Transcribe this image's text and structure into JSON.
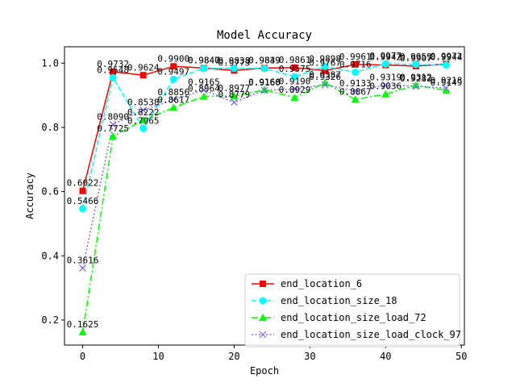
{
  "chart_data": {
    "type": "line",
    "title": "Model Accuracy",
    "xlabel": "Epoch",
    "ylabel": "Accuracy",
    "xlim": [
      -2.4,
      50.4
    ],
    "ylim": [
      0.122,
      1.051
    ],
    "xticks": [
      0,
      10,
      20,
      30,
      40,
      50
    ],
    "yticks": [
      0.2,
      0.4,
      0.6,
      0.8,
      1.0
    ],
    "x": [
      0,
      4,
      8,
      12,
      16,
      20,
      24,
      28,
      32,
      36,
      40,
      44,
      48
    ],
    "legend_position": "lower-right",
    "grid": false,
    "series": [
      {
        "name": "end_location_6",
        "color": "#ff0000",
        "dash": "solid",
        "marker": "square",
        "values": [
          0.6022,
          0.9732,
          0.9624,
          0.99,
          0.9847,
          0.9773,
          0.9849,
          0.9861,
          0.9767,
          0.9961,
          0.9942,
          0.9907,
          0.9972
        ],
        "labels": [
          "0.6022",
          "0.9732",
          "0.9624",
          "0.9900",
          "0.9847",
          "0.9773",
          "0.9849",
          "0.9861",
          "0.9767",
          "0.9961",
          "0.9942",
          "0.9907",
          "0.9972"
        ]
      },
      {
        "name": "end_location_size_18",
        "color": "#00ffff",
        "dash": "dashed",
        "marker": "circle",
        "values": [
          0.5466,
          0.9548,
          0.7965,
          0.9497,
          0.984,
          0.9838,
          0.9839,
          0.9575,
          0.9898,
          0.9716,
          0.9977,
          0.9959,
          0.9944
        ],
        "labels": [
          "0.5466",
          "0.9548",
          "0.7965",
          "0.9497",
          "0.9840",
          "0.9838",
          "0.9839",
          "0.9575",
          "0.9898",
          "0.9716",
          "0.9977",
          "0.9959",
          "0.9944"
        ]
      },
      {
        "name": "end_location_size_load_72",
        "color": "#00ff00",
        "dash": "dashdot",
        "marker": "triangle",
        "values": [
          0.1625,
          0.7725,
          0.8222,
          0.8617,
          0.8964,
          0.8977,
          0.9166,
          0.8929,
          0.9387,
          0.8867,
          0.9036,
          0.9312,
          0.9149
        ],
        "labels": [
          "0.1625",
          "0.7725",
          "0.8222",
          "0.8617",
          "0.8964",
          "0.8977",
          "0.9166",
          "0.8929",
          "0.9387",
          "0.8867",
          "0.9036",
          "0.9312",
          "0.9149"
        ]
      },
      {
        "name": "end_location_size_load_clock_97",
        "color": "#7b68ee",
        "dash": "dotted",
        "marker": "x",
        "values": [
          0.3616,
          0.809,
          0.8538,
          0.8856,
          0.9165,
          0.8779,
          0.916,
          0.919,
          0.9326,
          0.9133,
          0.9319,
          0.9282,
          0.9218
        ],
        "labels": [
          "0.3616",
          "0.8090",
          "0.8538",
          "0.8856",
          "0.9165",
          "0.8779",
          "0.9160",
          "0.9190",
          "0.9326",
          "0.9133",
          "0.9319",
          "0.9282",
          "0.9218"
        ]
      }
    ]
  }
}
